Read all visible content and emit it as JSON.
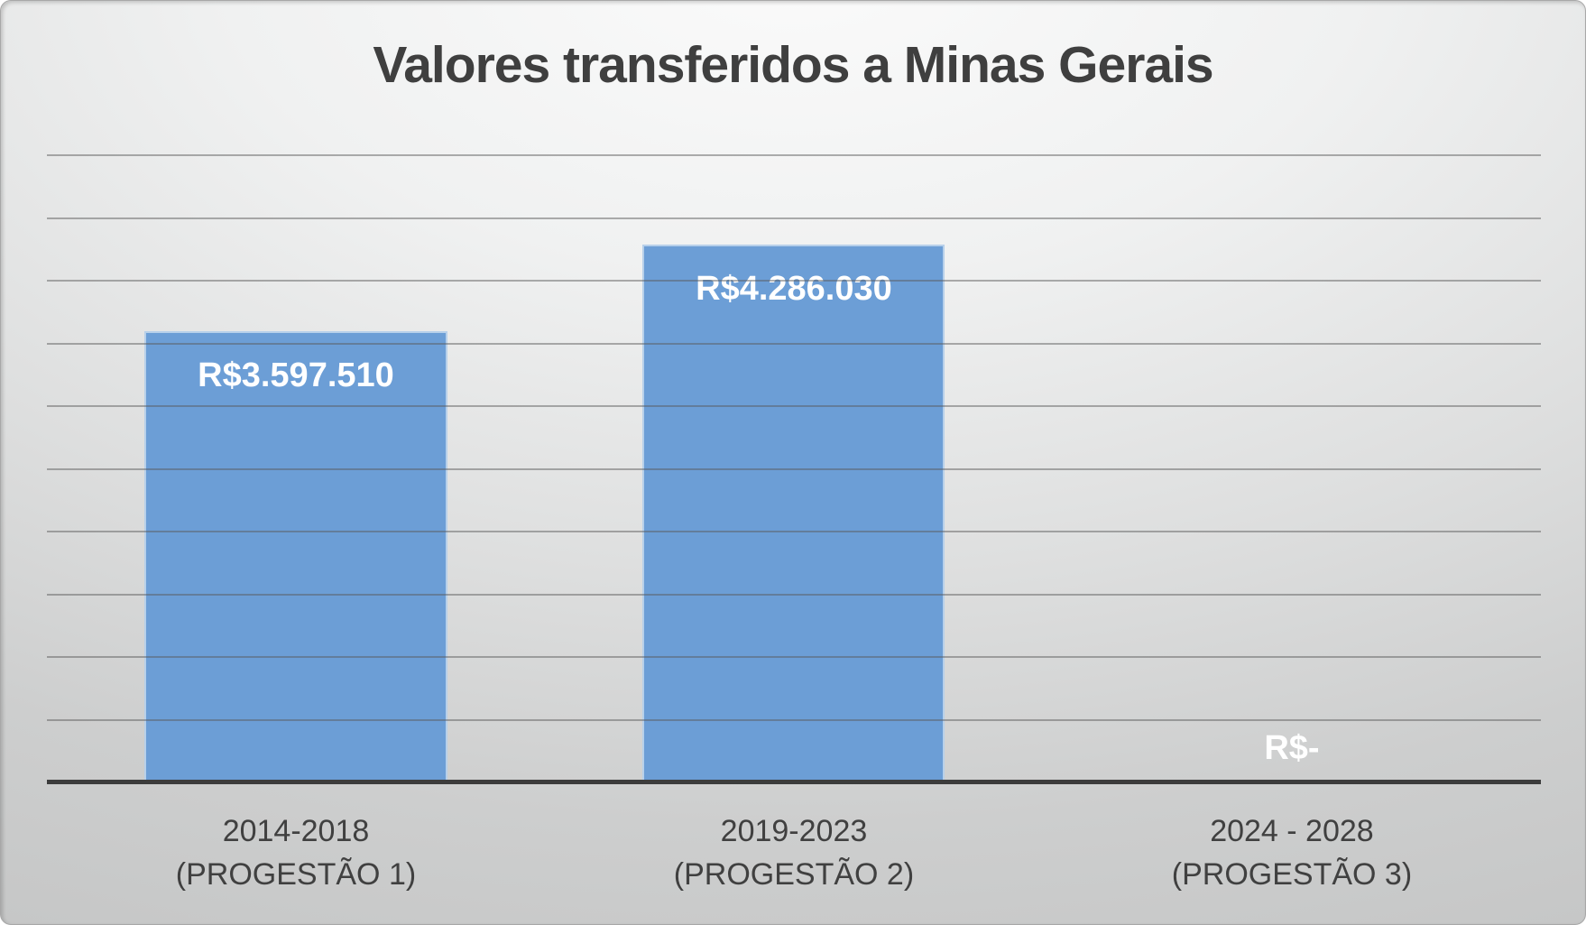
{
  "title": "Valores transferidos a Minas Gerais",
  "chart_data": {
    "type": "bar",
    "title": "Valores transferidos a Minas Gerais",
    "categories": [
      [
        "2014-2018",
        "(PROGESTÃO 1)"
      ],
      [
        "2019-2023",
        "(PROGESTÃO 2)"
      ],
      [
        "2024 - 2028",
        "(PROGESTÃO 3)"
      ]
    ],
    "values": [
      3597510,
      4286030,
      0
    ],
    "data_labels": [
      "R$3.597.510",
      "R$4.286.030",
      "R$-"
    ],
    "currency": "R$",
    "xlabel": "",
    "ylabel": "",
    "ylim": [
      0,
      5000000
    ],
    "gridline_step": 500000,
    "grid": true,
    "legend": false,
    "y_tick_labels_visible": false,
    "colors": {
      "bar_fill": "#6C9ED6",
      "bar_border": "#B7D0EA",
      "gridline": "rgba(90,90,90,0.48)",
      "axis_line": "#3C3C3C",
      "data_label": "#FFFFFF",
      "category_label": "#404040",
      "title": "#3F3F3F",
      "background_top": "#FBFBFB",
      "background_bottom": "#C6C7C7"
    }
  }
}
